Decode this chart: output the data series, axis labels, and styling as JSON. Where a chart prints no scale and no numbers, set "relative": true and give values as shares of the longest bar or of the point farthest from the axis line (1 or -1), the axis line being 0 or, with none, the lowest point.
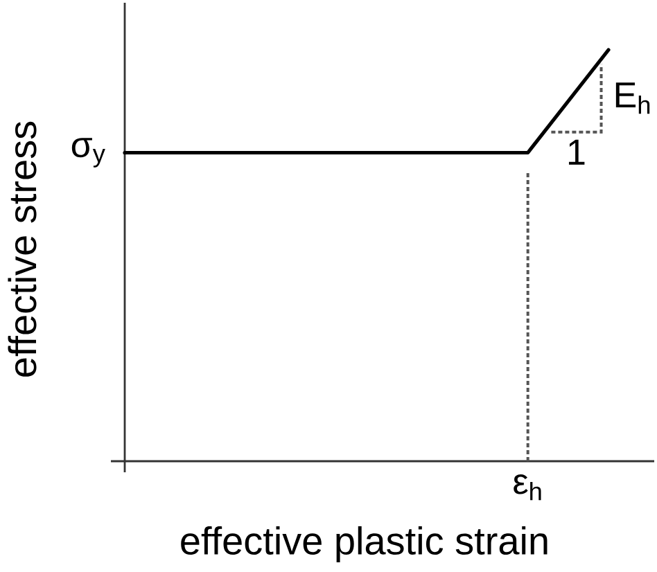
{
  "chart_data": {
    "type": "line",
    "xlabel": "effective plastic strain",
    "ylabel": "effective stress",
    "categories": [
      null,
      null,
      null,
      null,
      null,
      null,
      null
    ],
    "series": [
      {
        "color": "#000000",
        "values": [
          0.75,
          0.75,
          0.75,
          0.75,
          0.75,
          0.75,
          1
        ]
      }
    ],
    "relative": true,
    "annotations": [
      "σ$_{y}$",
      "ε$_{h}$",
      "E$_{h}$",
      "1"
    ]
  }
}
